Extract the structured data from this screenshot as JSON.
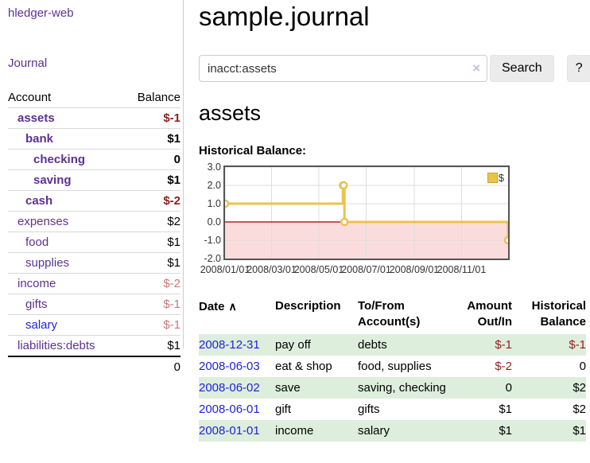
{
  "colors": {
    "link_purple": "#5c3292",
    "link_blue": "#2222dd",
    "negative_strong": "#8f1f1f",
    "negative_soft": "#c47979",
    "row_green": "#ddeedd",
    "chart_line": "#e9c44d",
    "chart_negative_region": "#fbdcdc",
    "chart_zero_line": "#990000",
    "chart_grid": "#dddddd",
    "chart_border": "#555555"
  },
  "sidebar": {
    "app_title": "hledger-web",
    "journal_link": "Journal",
    "columns": {
      "account": "Account",
      "balance": "Balance"
    },
    "accounts": [
      {
        "name": "assets",
        "level": 1,
        "balance": "$-1",
        "bold": true,
        "balance_tone": "strong"
      },
      {
        "name": "bank",
        "level": 2,
        "balance": "$1",
        "bold": true,
        "balance_tone": "normal"
      },
      {
        "name": "checking",
        "level": 3,
        "balance": "0",
        "bold": true,
        "balance_tone": "normal"
      },
      {
        "name": "saving",
        "level": 3,
        "balance": "$1",
        "bold": true,
        "balance_tone": "normal"
      },
      {
        "name": "cash",
        "level": 2,
        "balance": "$-2",
        "bold": true,
        "balance_tone": "strong"
      },
      {
        "name": "expenses",
        "level": 1,
        "balance": "$2",
        "bold": false,
        "balance_tone": "normal"
      },
      {
        "name": "food",
        "level": 2,
        "balance": "$1",
        "bold": false,
        "balance_tone": "normal"
      },
      {
        "name": "supplies",
        "level": 2,
        "balance": "$1",
        "bold": false,
        "balance_tone": "normal"
      },
      {
        "name": "income",
        "level": 1,
        "balance": "$-2",
        "bold": false,
        "balance_tone": "soft"
      },
      {
        "name": "gifts",
        "level": 2,
        "balance": "$-1",
        "bold": false,
        "balance_tone": "soft"
      },
      {
        "name": "salary",
        "level": 2,
        "balance": "$-1",
        "bold": false,
        "balance_tone": "soft",
        "link_color": "blue"
      },
      {
        "name": "liabilities:debts",
        "level": 1,
        "balance": "$1",
        "bold": false,
        "balance_tone": "normal"
      }
    ],
    "total": "0"
  },
  "main": {
    "title": "sample.journal",
    "search": {
      "value": "inacct:assets",
      "clear_icon": "×",
      "button_label": "Search",
      "help_label": "?"
    },
    "account_heading": "assets",
    "chart_label": "Historical Balance:"
  },
  "chart_data": {
    "type": "line",
    "title": "Historical Balance",
    "step": true,
    "series": [
      {
        "name": "$",
        "points": [
          {
            "x": "2008-01-01",
            "y": 1
          },
          {
            "x": "2008-06-01",
            "y": 2
          },
          {
            "x": "2008-06-02",
            "y": 2
          },
          {
            "x": "2008-06-03",
            "y": 0
          },
          {
            "x": "2008-12-31",
            "y": -1
          }
        ]
      }
    ],
    "x_range": [
      "2008-01-01",
      "2008-12-31"
    ],
    "ylim": [
      -2,
      3
    ],
    "y_ticks": [
      "3.0",
      "2.0",
      "1.0",
      "0.0",
      "-1.0",
      "-2.0"
    ],
    "y_tick_values": [
      3,
      2,
      1,
      0,
      -1,
      -2
    ],
    "x_ticks": [
      {
        "label": "2008/01/01",
        "date": "2008-01-01"
      },
      {
        "label": "2008/03/01",
        "date": "2008-03-01"
      },
      {
        "label": "2008/05/01",
        "date": "2008-05-01"
      },
      {
        "label": "2008/07/01",
        "date": "2008-07-01"
      },
      {
        "label": "2008/09/01",
        "date": "2008-09-01"
      },
      {
        "label": "2008/11/01",
        "date": "2008-11-01"
      }
    ],
    "grid": true,
    "legend": {
      "label": "$",
      "position": "top-right"
    }
  },
  "register": {
    "headers": {
      "date": "Date",
      "description": "Description",
      "accounts": "To/From Account(s)",
      "amount": "Amount Out/In",
      "balance": "Historical Balance"
    },
    "sort_icon_glyph": "∧",
    "rows": [
      {
        "date": "2008-12-31",
        "description": "pay off",
        "accounts": "debts",
        "amount": "$-1",
        "amount_tone": "strong",
        "balance": "$-1",
        "balance_tone": "strong",
        "striped": true
      },
      {
        "date": "2008-06-03",
        "description": "eat & shop",
        "accounts": "food, supplies",
        "amount": "$-2",
        "amount_tone": "strong",
        "balance": "0",
        "balance_tone": "normal",
        "striped": false
      },
      {
        "date": "2008-06-02",
        "description": "save",
        "accounts": "saving, checking",
        "amount": "0",
        "amount_tone": "normal",
        "balance": "$2",
        "balance_tone": "normal",
        "striped": true
      },
      {
        "date": "2008-06-01",
        "description": "gift",
        "accounts": "gifts",
        "amount": "$1",
        "amount_tone": "normal",
        "balance": "$2",
        "balance_tone": "normal",
        "striped": false
      },
      {
        "date": "2008-01-01",
        "description": "income",
        "accounts": "salary",
        "amount": "$1",
        "amount_tone": "normal",
        "balance": "$1",
        "balance_tone": "normal",
        "striped": true
      }
    ]
  }
}
